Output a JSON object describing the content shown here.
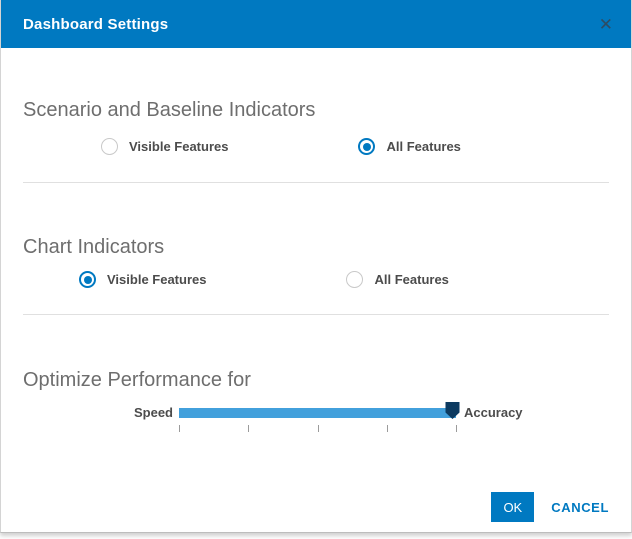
{
  "dialog": {
    "title": "Dashboard Settings",
    "close_glyph": "✕"
  },
  "sections": [
    {
      "heading": "Scenario and Baseline Indicators",
      "options": [
        {
          "label": "Visible Features",
          "selected": false
        },
        {
          "label": "All Features",
          "selected": true
        }
      ]
    },
    {
      "heading": "Chart Indicators",
      "options": [
        {
          "label": "Visible Features",
          "selected": true
        },
        {
          "label": "All Features",
          "selected": false
        }
      ]
    }
  ],
  "performance": {
    "heading": "Optimize Performance for",
    "min_label": "Speed",
    "max_label": "Accuracy",
    "value_percent": 100,
    "tick_count": 5
  },
  "footer": {
    "ok_label": "OK",
    "cancel_label": "CANCEL"
  },
  "colors": {
    "header_bg": "#0079c1",
    "accent": "#0079c1",
    "slider_track": "#42a0dc",
    "slider_handle": "#0c3a60",
    "heading_text": "#6e6e6e",
    "label_text": "#4c4c4c"
  }
}
